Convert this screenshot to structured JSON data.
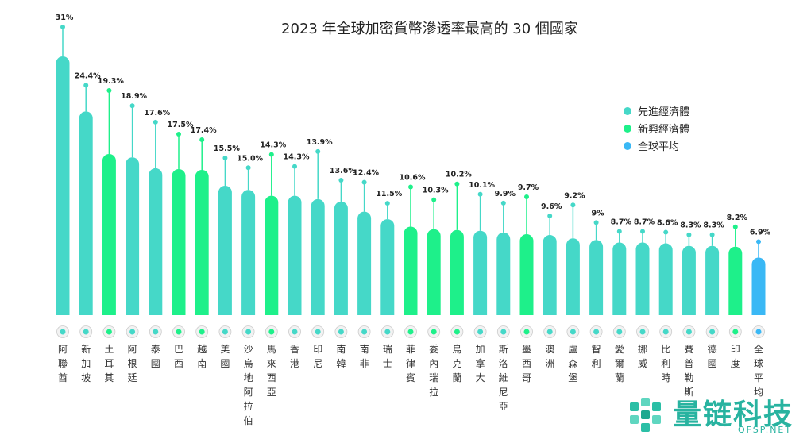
{
  "chart_data": {
    "type": "bar",
    "title": "2023 年全球加密貨幣滲透率最高的 30 個國家",
    "categories": [
      "阿聯酋",
      "新加坡",
      "土耳其",
      "阿根廷",
      "泰國",
      "巴西",
      "越南",
      "美國",
      "沙烏地阿拉伯",
      "馬來西亞",
      "香港",
      "印尼",
      "南韓",
      "南非",
      "瑞士",
      "菲律賓",
      "委內瑞拉",
      "烏克蘭",
      "加拿大",
      "斯洛維尼亞",
      "墨西哥",
      "澳洲",
      "盧森堡",
      "智利",
      "愛爾蘭",
      "挪威",
      "比利時",
      "賽普勒斯",
      "德國",
      "印度",
      "全球平均"
    ],
    "values": [
      31,
      24.4,
      19.3,
      18.9,
      17.6,
      17.5,
      17.4,
      15.5,
      15.0,
      14.3,
      14.3,
      13.9,
      13.6,
      12.4,
      11.5,
      10.6,
      10.3,
      10.2,
      10.1,
      9.9,
      9.7,
      9.6,
      9.2,
      9,
      8.7,
      8.7,
      8.6,
      8.3,
      8.3,
      8.2,
      6.9
    ],
    "value_labels": [
      "31%",
      "24.4%",
      "19.3%",
      "18.9%",
      "17.6%",
      "17.5%",
      "17.4%",
      "15.5%",
      "15.0%",
      "14.3%",
      "14.3%",
      "13.9%",
      "13.6%",
      "12.4%",
      "11.5%",
      "10.6%",
      "10.3%",
      "10.2%",
      "10.1%",
      "9.9%",
      "9.7%",
      "9.6%",
      "9.2%",
      "9%",
      "8.7%",
      "8.7%",
      "8.6%",
      "8.3%",
      "8.3%",
      "8.2%",
      "6.9%"
    ],
    "groups": [
      "advanced",
      "advanced",
      "emerging",
      "advanced",
      "advanced",
      "emerging",
      "emerging",
      "advanced",
      "advanced",
      "emerging",
      "advanced",
      "advanced",
      "advanced",
      "advanced",
      "advanced",
      "emerging",
      "emerging",
      "emerging",
      "advanced",
      "advanced",
      "emerging",
      "advanced",
      "advanced",
      "advanced",
      "advanced",
      "advanced",
      "advanced",
      "advanced",
      "advanced",
      "emerging",
      "global"
    ],
    "legend": [
      {
        "key": "advanced",
        "label": "先進經濟體",
        "color": "#45d8c8"
      },
      {
        "key": "emerging",
        "label": "新興經濟體",
        "color": "#1ef08a"
      },
      {
        "key": "global",
        "label": "全球平均",
        "color": "#3ab8f5"
      }
    ],
    "legend_position": "right",
    "flag_icons": [
      "uae-flag-icon",
      "singapore-flag-icon",
      "turkey-flag-icon",
      "argentina-flag-icon",
      "thailand-flag-icon",
      "brazil-flag-icon",
      "vietnam-flag-icon",
      "usa-flag-icon",
      "saudi-flag-icon",
      "malaysia-flag-icon",
      "hongkong-flag-icon",
      "indonesia-flag-icon",
      "korea-flag-icon",
      "southafrica-flag-icon",
      "switzerland-flag-icon",
      "philippines-flag-icon",
      "venezuela-flag-icon",
      "ukraine-flag-icon",
      "canada-flag-icon",
      "slovenia-flag-icon",
      "mexico-flag-icon",
      "australia-flag-icon",
      "luxembourg-flag-icon",
      "chile-flag-icon",
      "ireland-flag-icon",
      "norway-flag-icon",
      "belgium-flag-icon",
      "cyprus-flag-icon",
      "germany-flag-icon",
      "india-flag-icon",
      "globe-icon"
    ],
    "ylim": [
      0,
      31
    ]
  },
  "watermark": {
    "text": "量链科技",
    "sub": "QFSP.NET"
  }
}
